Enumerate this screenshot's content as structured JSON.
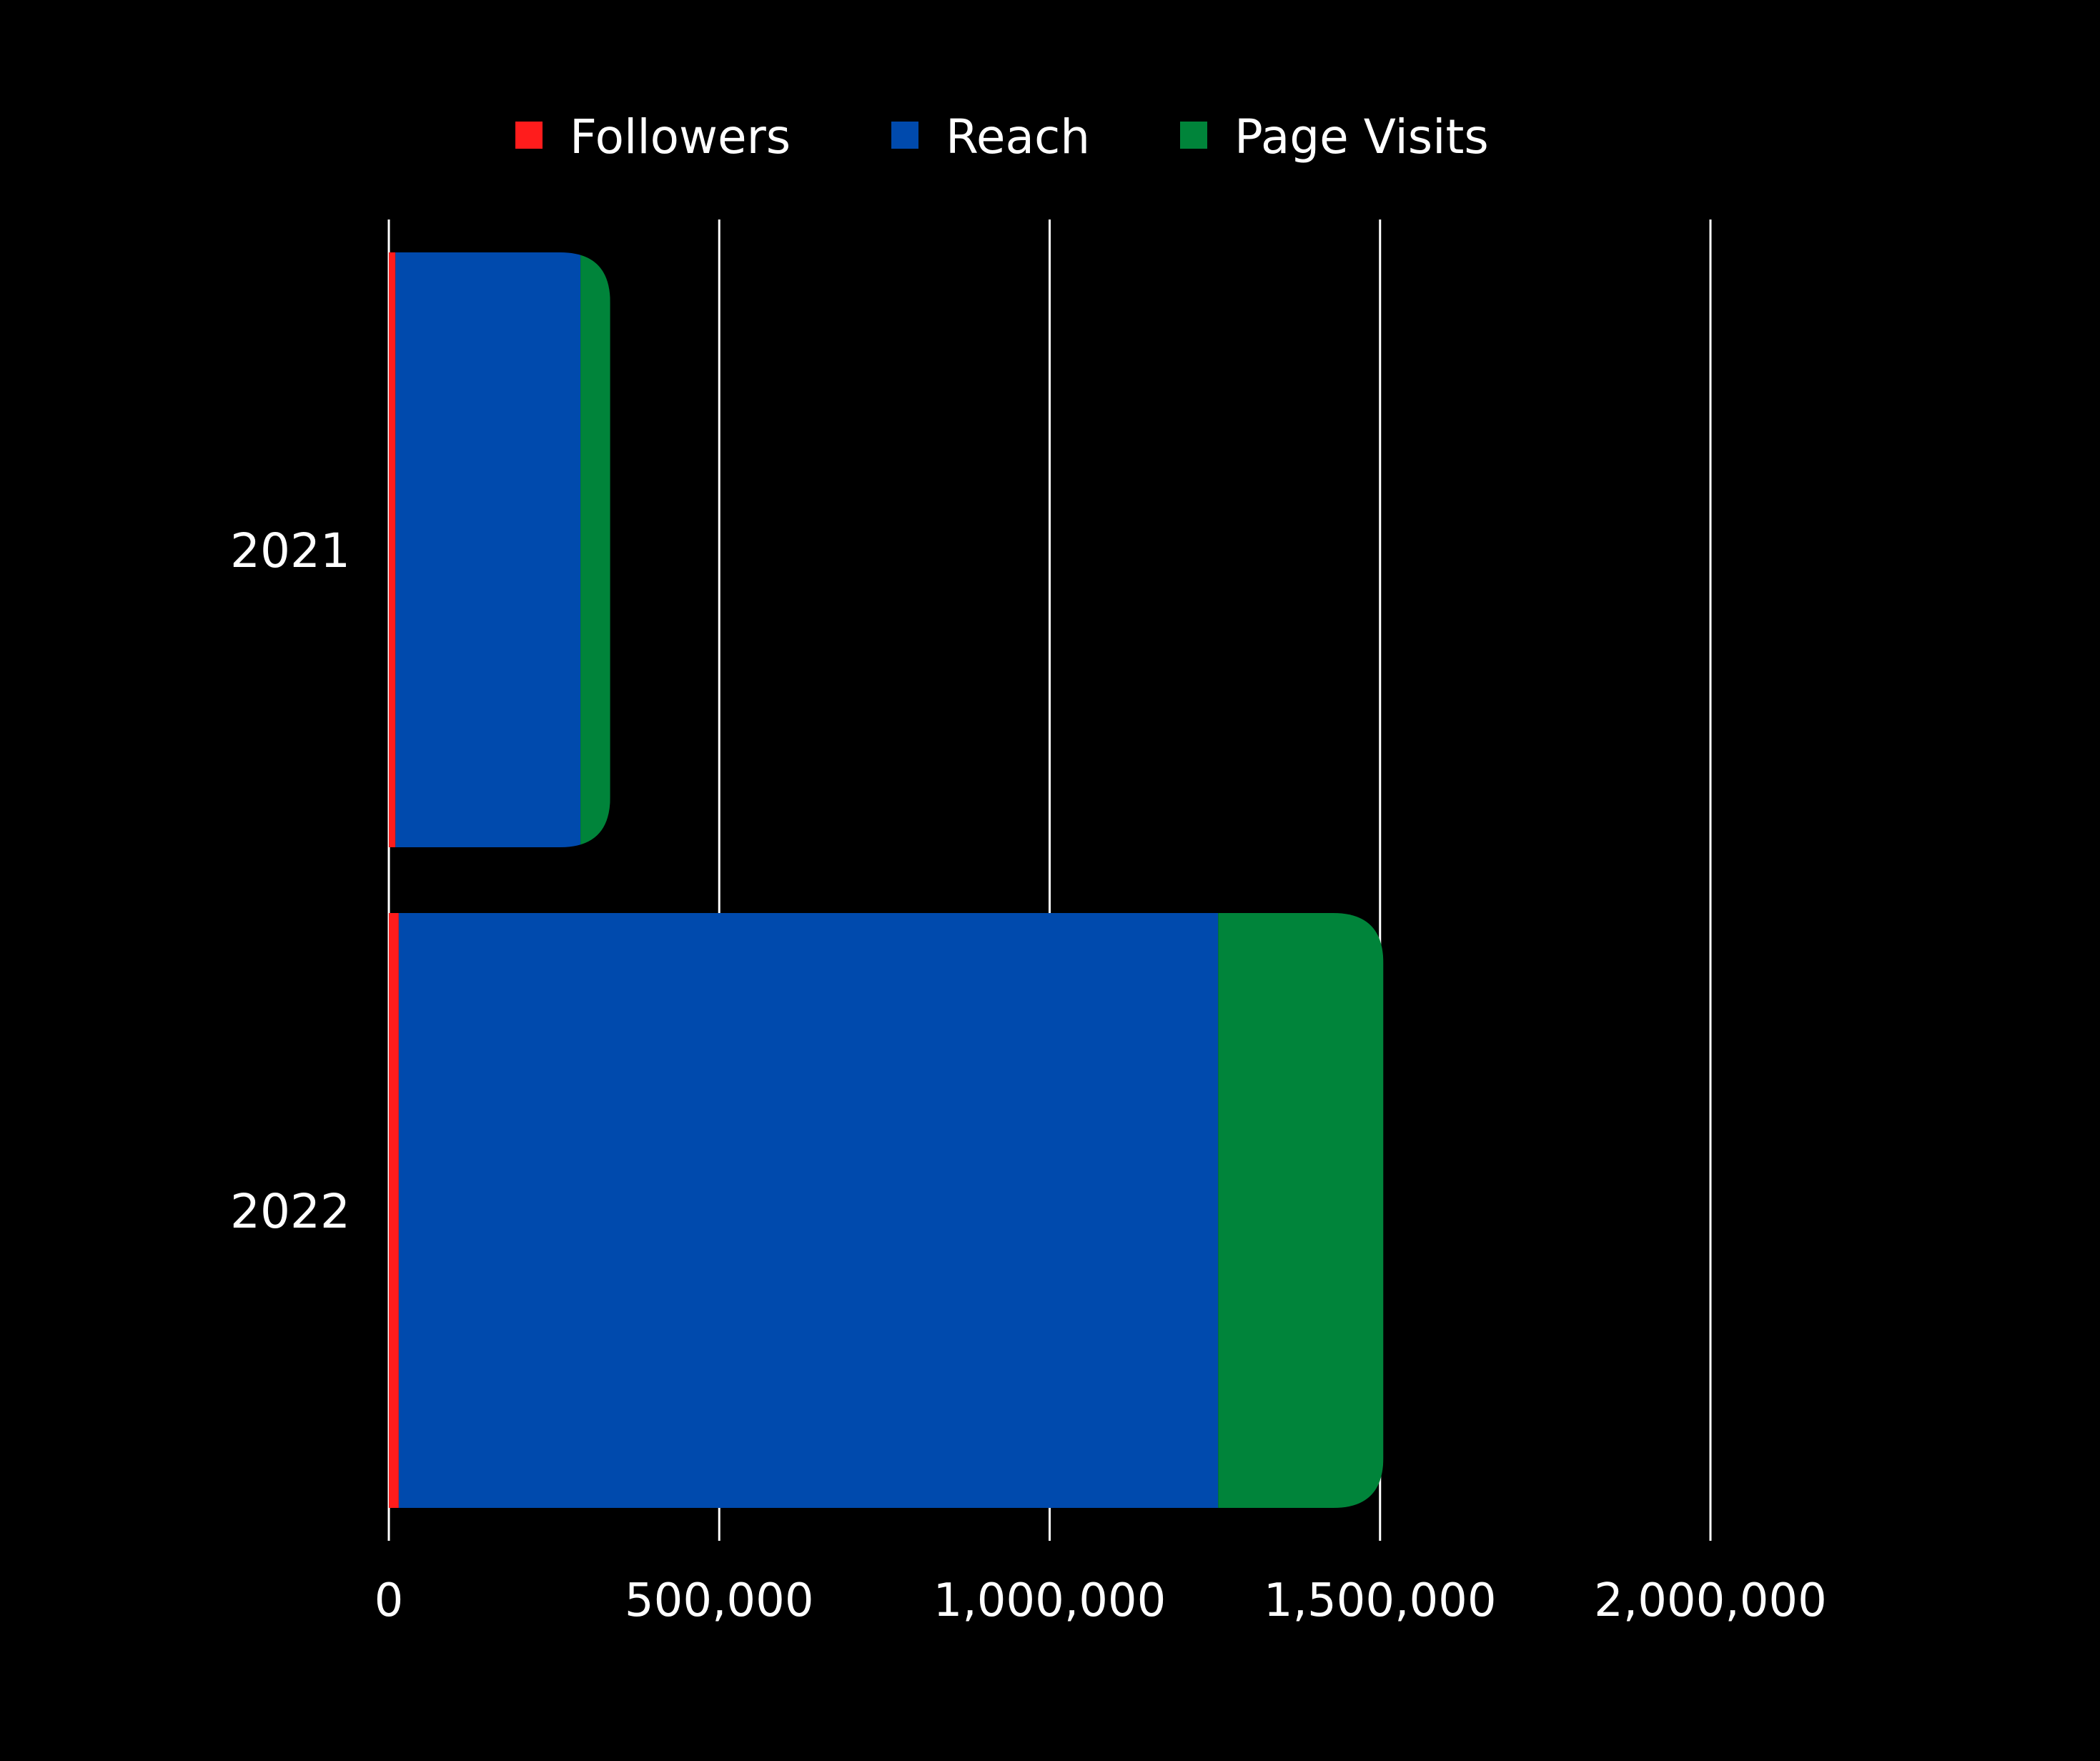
{
  "chart_data": {
    "type": "bar",
    "orientation": "horizontal",
    "stacked": true,
    "categories": [
      "2021",
      "2022"
    ],
    "series": [
      {
        "name": "Followers",
        "color": "#ff1c1c",
        "values": [
          10000,
          15000
        ]
      },
      {
        "name": "Reach",
        "color": "#004aad",
        "values": [
          280000,
          1240000
        ]
      },
      {
        "name": "Page Visits",
        "color": "#00843a",
        "values": [
          45000,
          250000
        ]
      }
    ],
    "xlim": [
      0,
      2000000
    ],
    "x_ticks": [
      0,
      500000,
      1000000,
      1500000,
      2000000
    ],
    "x_tick_labels": [
      "0",
      "500,000",
      "1,000,000",
      "1,500,000",
      "2,000,000"
    ],
    "grid": "vertical",
    "legend": "top-center",
    "background": "#000000",
    "grid_color": "#ffffff",
    "text_color": "#ffffff"
  }
}
